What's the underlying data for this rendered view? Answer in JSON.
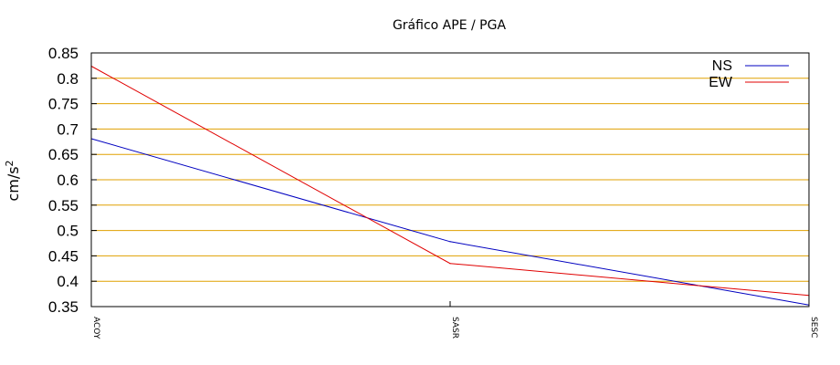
{
  "chart_data": {
    "type": "line",
    "title": "Gráfico  APE / PGA",
    "ylabel_base": "cm/s",
    "ylabel_sup": "2",
    "xlabel": "",
    "categories": [
      "ACOY",
      "SASR",
      "SESC"
    ],
    "ylim": [
      0.35,
      0.85
    ],
    "yticks": [
      0.35,
      0.4,
      0.45,
      0.5,
      0.55,
      0.6,
      0.65,
      0.7,
      0.75,
      0.8,
      0.85
    ],
    "ytick_labels": [
      "0.35",
      "0.4",
      "0.45",
      "0.5",
      "0.55",
      "0.6",
      "0.65",
      "0.7",
      "0.75",
      "0.8",
      "0.85"
    ],
    "grid": true,
    "grid_color": "#e0a000",
    "legend_position": "top-right",
    "series": [
      {
        "name": "NS",
        "values": [
          0.681,
          0.478,
          0.353
        ],
        "color": "#0000c0"
      },
      {
        "name": "EW",
        "values": [
          0.824,
          0.435,
          0.372
        ],
        "color": "#e00000"
      }
    ]
  }
}
